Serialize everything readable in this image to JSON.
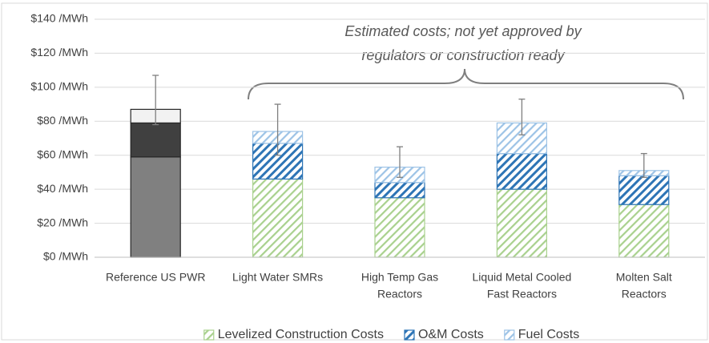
{
  "chart_data": {
    "type": "stacked_bar",
    "categories": [
      [
        "Reference US PWR"
      ],
      [
        "Light Water SMRs"
      ],
      [
        "High Temp Gas",
        "Reactors"
      ],
      [
        "Liquid Metal Cooled",
        "Fast Reactors"
      ],
      [
        "Molten Salt",
        "Reactors"
      ]
    ],
    "series": [
      {
        "name": "Levelized Construction Costs",
        "color": "#a9d18e",
        "values": [
          59,
          46,
          35,
          40,
          31
        ],
        "point_colors": [
          "#808080",
          null,
          null,
          null,
          null
        ]
      },
      {
        "name": "O&M Costs",
        "color": "#2e75b6",
        "values": [
          20,
          21,
          9,
          21,
          17
        ],
        "point_colors": [
          "#404040",
          null,
          null,
          null,
          null
        ]
      },
      {
        "name": "Fuel Costs",
        "color": "#9dc3e6",
        "values": [
          8,
          7,
          9,
          18,
          3
        ],
        "point_colors": [
          "#f2f2f2",
          null,
          null,
          null,
          null
        ]
      }
    ],
    "error_low": [
      78,
      60,
      47,
      72,
      47
    ],
    "error_high": [
      107,
      90,
      65,
      93,
      61
    ],
    "annotation": [
      "Estimated costs; not yet approved by",
      "regulators or construction ready"
    ],
    "ylim": [
      0,
      140
    ],
    "yticks": [
      {
        "value": 0,
        "label": "$0 /MWh"
      },
      {
        "value": 20,
        "label": "$20 /MWh"
      },
      {
        "value": 40,
        "label": "$40 /MWh"
      },
      {
        "value": 60,
        "label": "$60 /MWh"
      },
      {
        "value": 80,
        "label": "$80 /MWh"
      },
      {
        "value": 100,
        "label": "$100 /MWh"
      },
      {
        "value": 120,
        "label": "$120 /MWh"
      },
      {
        "value": 140,
        "label": "$140 /MWh"
      }
    ],
    "grid": true,
    "legend": "bottom"
  }
}
